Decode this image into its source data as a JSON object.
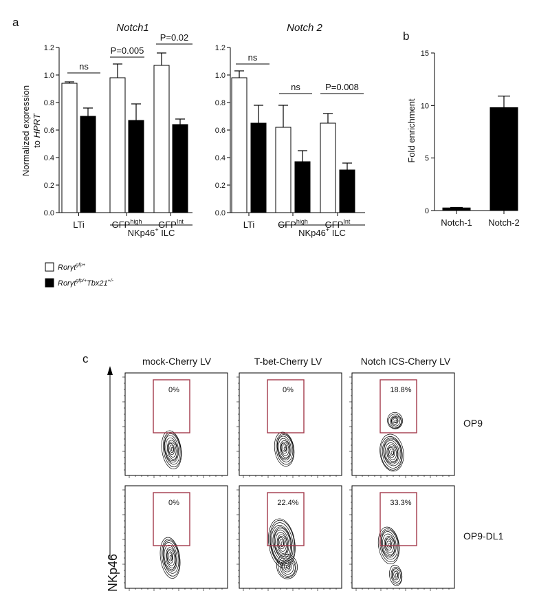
{
  "panels": {
    "a": "a",
    "b": "b",
    "c": "c"
  },
  "panel_a": {
    "ylabel_line1": "Normalized expression",
    "ylabel_line2_prefix": "to ",
    "ylabel_line2_italic": "HPRT",
    "group_label": "NKp46",
    "group_label_sup": "+",
    "group_label_suffix": " ILC",
    "categories": [
      {
        "base": "LTi",
        "sup": ""
      },
      {
        "base": "GFP",
        "sup": "high"
      },
      {
        "base": "GFP",
        "sup": "Int"
      }
    ]
  },
  "legend": {
    "wt_prefix": "Ror",
    "wt_gamma": "γ",
    "wt_t": "t",
    "wt_sup": "gfp+",
    "mut_prefix": "Ror",
    "mut_gamma": "γ",
    "mut_t": "t",
    "mut_sup": "gfp/+",
    "mut_gene": "Tbx21",
    "mut_gene_sup": "+/-",
    "wt_color": "#ffffff",
    "mut_color": "#000000"
  },
  "chart_data": [
    {
      "type": "bar",
      "title": "Notch1",
      "categories": [
        "LTi",
        "GFPhigh",
        "GFPInt"
      ],
      "ylim": [
        0,
        1.2
      ],
      "yticks": [
        "0.0",
        "0.2",
        "0.4",
        "0.6",
        "0.8",
        "1.0",
        "1.2"
      ],
      "series": [
        {
          "name": "Rorγtgfp+",
          "values": [
            0.94,
            0.98,
            1.07
          ],
          "errors": [
            0.01,
            0.1,
            0.09
          ]
        },
        {
          "name": "Rorγtgfp/+Tbx21+/-",
          "values": [
            0.7,
            0.67,
            0.64
          ],
          "errors": [
            0.06,
            0.12,
            0.04
          ]
        }
      ],
      "annotations": [
        "ns",
        "P=0.005",
        "P=0.02"
      ]
    },
    {
      "type": "bar",
      "title": "Notch 2",
      "categories": [
        "LTi",
        "GFPhigh",
        "GFPInt"
      ],
      "ylim": [
        0,
        1.2
      ],
      "yticks": [
        "0.0",
        "0.2",
        "0.4",
        "0.6",
        "0.8",
        "1.0",
        "1.2"
      ],
      "series": [
        {
          "name": "Rorγtgfp+",
          "values": [
            0.98,
            0.62,
            0.65
          ],
          "errors": [
            0.05,
            0.16,
            0.07
          ]
        },
        {
          "name": "Rorγtgfp/+Tbx21+/-",
          "values": [
            0.65,
            0.37,
            0.31
          ],
          "errors": [
            0.13,
            0.08,
            0.05
          ]
        }
      ],
      "annotations": [
        "ns",
        "ns",
        "P=0.008"
      ]
    },
    {
      "type": "bar",
      "title": "",
      "ylabel": "Fold enrichment",
      "categories": [
        "Notch-1",
        "Notch-2"
      ],
      "ylim": [
        0,
        15
      ],
      "yticks": [
        "0",
        "5",
        "10",
        "15"
      ],
      "values": [
        0.25,
        9.8
      ],
      "errors": [
        0.05,
        1.1
      ],
      "color": "#000000"
    }
  ],
  "panel_c": {
    "yaxis_label": "NKp46",
    "columns": [
      "mock-Cherry LV",
      "T-bet-Cherry LV",
      "Notch ICS-Cherry LV"
    ],
    "rows": [
      "OP9",
      "OP9-DL1"
    ],
    "percentages": [
      [
        "0%",
        "0%",
        "18.8%"
      ],
      [
        "0%",
        "22.4%",
        "33.3%"
      ]
    ],
    "gate_color": "#a3384a"
  }
}
